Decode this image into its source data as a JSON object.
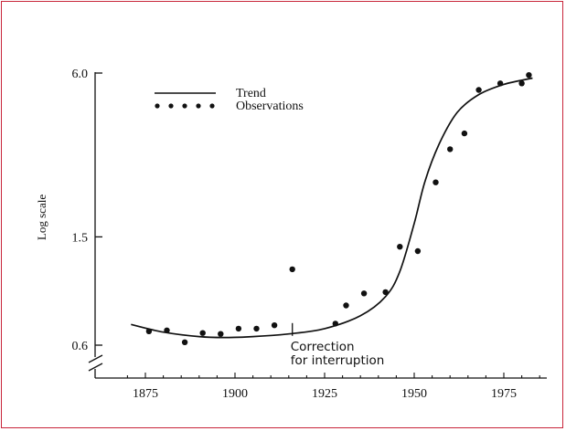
{
  "chart_data": {
    "type": "scatter",
    "title": "",
    "xlabel": "",
    "ylabel": "Log scale",
    "y_scale": "log",
    "x_ticks": [
      "1875",
      "1900",
      "1925",
      "1950",
      "1975"
    ],
    "y_ticks": [
      "0.6",
      "1.5",
      "6.0"
    ],
    "xlim": [
      1863,
      1992
    ],
    "ylim": [
      0.6,
      6.0
    ],
    "legend": {
      "position": "top-left",
      "entries": [
        {
          "label": "Trend",
          "style": "line"
        },
        {
          "label": "Observations",
          "style": "dots"
        }
      ]
    },
    "series": [
      {
        "name": "Observations",
        "points": [
          [
            1876,
            0.675
          ],
          [
            1881,
            0.68
          ],
          [
            1886,
            0.615
          ],
          [
            1891,
            0.665
          ],
          [
            1896,
            0.66
          ],
          [
            1901,
            0.69
          ],
          [
            1906,
            0.69
          ],
          [
            1911,
            0.71
          ],
          [
            1916,
            1.14
          ],
          [
            1928,
            0.72
          ],
          [
            1931,
            0.84
          ],
          [
            1936,
            0.93
          ],
          [
            1942,
            0.94
          ],
          [
            1946,
            1.38
          ],
          [
            1951,
            1.33
          ],
          [
            1956,
            2.38
          ],
          [
            1960,
            3.15
          ],
          [
            1964,
            3.6
          ],
          [
            1968,
            5.2
          ],
          [
            1974,
            5.5
          ],
          [
            1980,
            5.5
          ],
          [
            1982,
            5.9
          ]
        ]
      },
      {
        "name": "Trend",
        "points": [
          [
            1871,
            0.715
          ],
          [
            1880,
            0.67
          ],
          [
            1890,
            0.645
          ],
          [
            1897,
            0.64
          ],
          [
            1905,
            0.645
          ],
          [
            1915,
            0.66
          ],
          [
            1925,
            0.69
          ],
          [
            1935,
            0.77
          ],
          [
            1942,
            0.905
          ],
          [
            1946,
            1.12
          ],
          [
            1950,
            1.68
          ],
          [
            1953,
            2.4
          ],
          [
            1957,
            3.3
          ],
          [
            1962,
            4.3
          ],
          [
            1968,
            5.0
          ],
          [
            1975,
            5.45
          ],
          [
            1983,
            5.75
          ]
        ]
      }
    ],
    "annotations": [
      {
        "lines": [
          "Correction",
          "for interruption"
        ],
        "x": 1916,
        "y": 0.68
      }
    ]
  }
}
